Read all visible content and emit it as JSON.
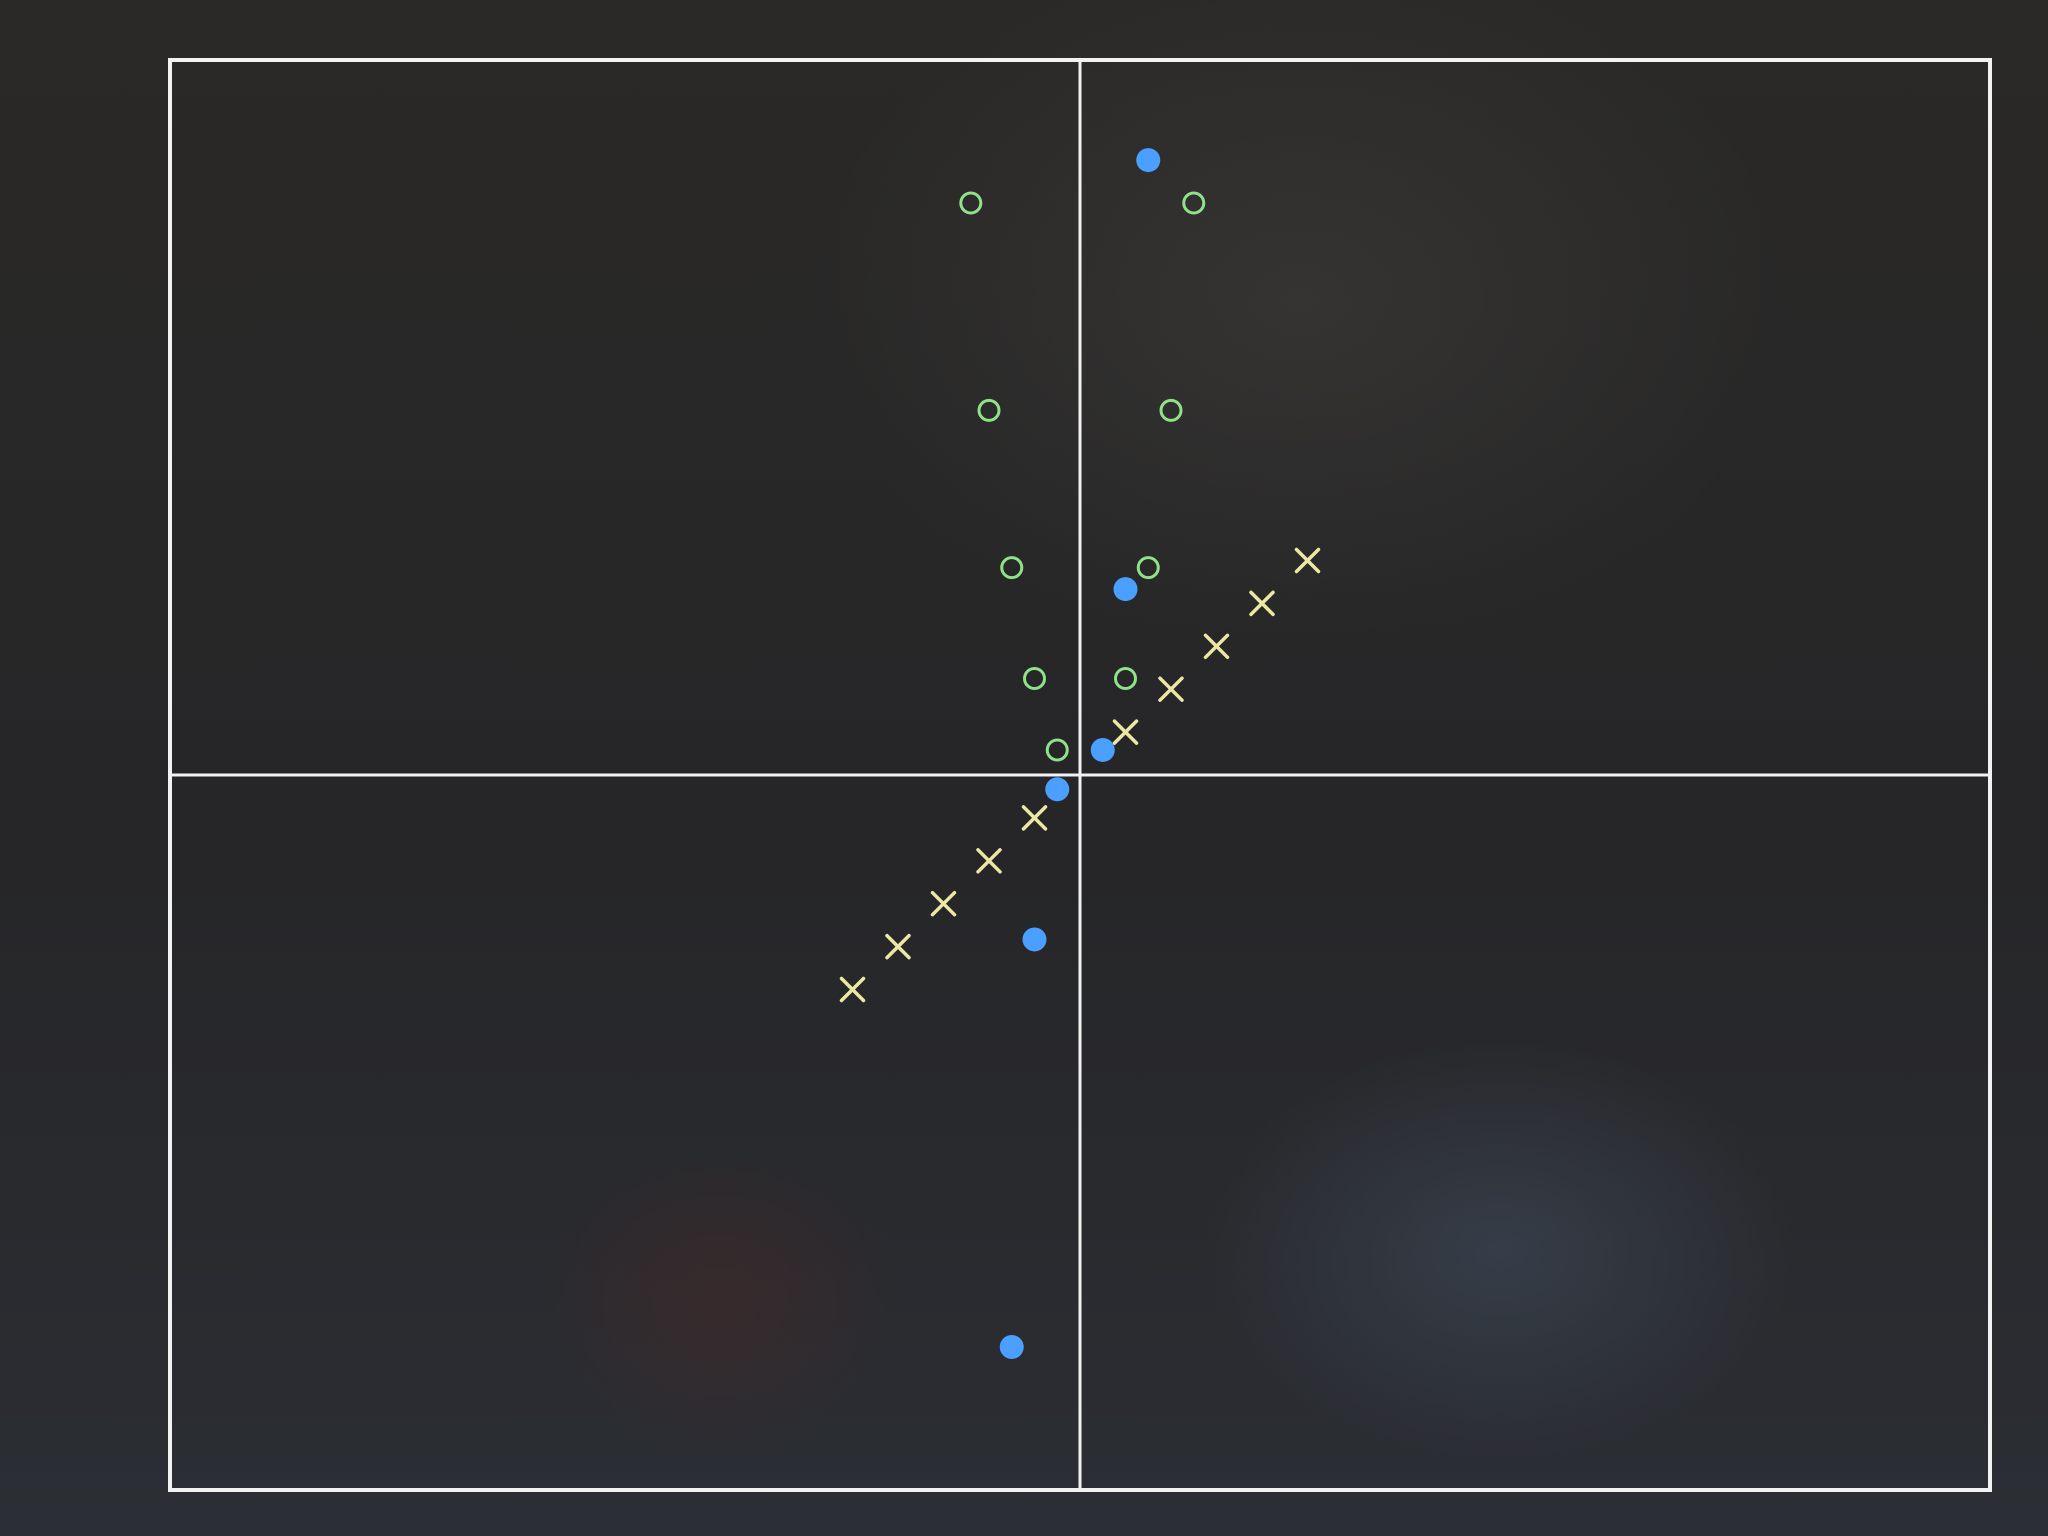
{
  "chart_data": {
    "type": "scatter",
    "title": "",
    "xlabel": "",
    "ylabel": "",
    "xlim": [
      -10,
      10
    ],
    "ylim": [
      -10,
      10
    ],
    "grid": false,
    "axes_lines": true,
    "legend": false,
    "series": [
      {
        "marker": "circle-open",
        "color": "#8fe28a",
        "points": [
          {
            "x": -1.2,
            "y": 8.0
          },
          {
            "x": -1.0,
            "y": 5.1
          },
          {
            "x": -0.75,
            "y": 2.9
          },
          {
            "x": -0.5,
            "y": 1.35
          },
          {
            "x": -0.25,
            "y": 0.35
          },
          {
            "x": 0.5,
            "y": 1.35
          },
          {
            "x": 0.75,
            "y": 2.9
          },
          {
            "x": 1.0,
            "y": 5.1
          },
          {
            "x": 1.25,
            "y": 8.0
          }
        ]
      },
      {
        "marker": "x",
        "color": "#ece8a4",
        "points": [
          {
            "x": -2.5,
            "y": -3.0
          },
          {
            "x": -2.0,
            "y": -2.4
          },
          {
            "x": -1.5,
            "y": -1.8
          },
          {
            "x": -1.0,
            "y": -1.2
          },
          {
            "x": -0.5,
            "y": -0.6
          },
          {
            "x": 0.5,
            "y": 0.6
          },
          {
            "x": 1.0,
            "y": 1.2
          },
          {
            "x": 1.5,
            "y": 1.8
          },
          {
            "x": 2.0,
            "y": 2.4
          },
          {
            "x": 2.5,
            "y": 3.0
          }
        ]
      },
      {
        "marker": "circle-filled",
        "color": "#4a9fff",
        "points": [
          {
            "x": -0.75,
            "y": -8.0
          },
          {
            "x": -0.5,
            "y": -2.3
          },
          {
            "x": -0.25,
            "y": -0.2
          },
          {
            "x": 0.25,
            "y": 0.35
          },
          {
            "x": 0.5,
            "y": 2.6
          },
          {
            "x": 0.75,
            "y": 8.6
          }
        ]
      }
    ]
  }
}
